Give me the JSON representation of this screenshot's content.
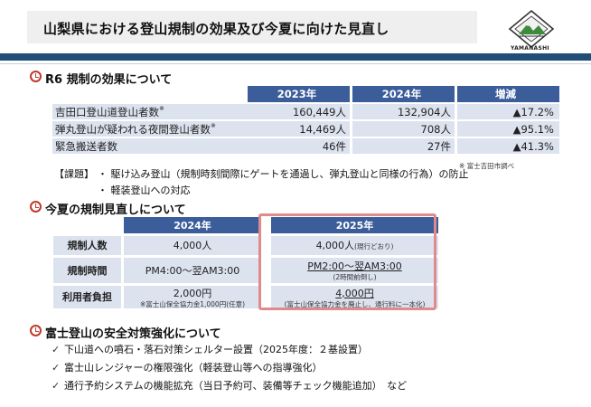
{
  "header": {
    "title": "山梨県における登山規制の効果及び今夏に向けた見直し",
    "logo_text": "YAMANASHI"
  },
  "section1": {
    "title": "R6  規制の効果について",
    "headers": [
      "2023年",
      "2024年",
      "増減"
    ],
    "rows": [
      {
        "label": "吉田口登山道登山者数",
        "mark": "※",
        "v2023": "160,449人",
        "v2024": "132,904人",
        "change": "▲17.2%"
      },
      {
        "label": "弾丸登山が疑われる夜間登山者数",
        "mark": "※",
        "v2023": "14,469人",
        "v2024": "708人",
        "change": "▲95.1%"
      },
      {
        "label": "緊急搬送者数",
        "mark": "",
        "v2023": "46件",
        "v2024": "27件",
        "change": "▲41.3%"
      }
    ],
    "source_note": "※ 富士吉田市調べ",
    "issue_label": "【課題】",
    "issue_lines": [
      "・ 駆け込み登山（規制時刻間際にゲートを通過し、弾丸登山と同様の行為）の防止",
      "・ 軽装登山への対応"
    ]
  },
  "section2": {
    "title": "今夏の規制見直しについて",
    "headers": [
      "2024年",
      "2025年"
    ],
    "rows": [
      {
        "label": "規制人数",
        "v2024": "4,000人",
        "v2024_note": "",
        "v2025": "4,000人",
        "v2025_suffix": "(現行どおり)",
        "v2025_note": ""
      },
      {
        "label": "規制時間",
        "v2024": "PM4:00～翌AM3:00",
        "v2024_note": "",
        "v2025": "PM2:00～翌AM3:00",
        "v2025_note": "(2時間前倒し)"
      },
      {
        "label": "利用者負担",
        "v2024": "2,000円",
        "v2024_note": "※富士山保全協力金1,000円(任意)",
        "v2025": "4,000円",
        "v2025_note": "(富士山保全協力金を廃止し、通行料に一本化)"
      }
    ]
  },
  "section3": {
    "title": "富士登山の安全対策強化について",
    "bullets": [
      "下山道への噴石・落石対策シェルター設置（2025年度：２基設置）",
      "富士山レンジャーの権限強化（軽装登山等への指導強化）",
      "通行予約システムの機能拡充（当日予約可、装備等チェック機能追加）　など"
    ],
    "check_icon": "✓"
  },
  "colors": {
    "header_bar": "#1f4e79",
    "table_header": "#3b5d9a",
    "table_body": "#dce3ef",
    "highlight_border": "#e08a8c",
    "clock_icon": "#c0392b"
  }
}
